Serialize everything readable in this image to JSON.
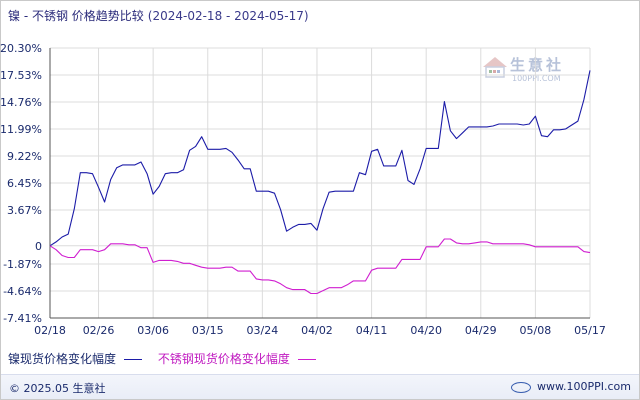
{
  "header": {
    "title": "镍 - 不锈钢 价格趋势比较",
    "date_range": "(2024-02-18 - 2024-05-17)"
  },
  "watermark": {
    "brand": "生意社",
    "site": "100PPI.COM"
  },
  "footer": {
    "copyright": "© 2025.05 生意社",
    "site": "www.100PPI.com"
  },
  "chart_data": {
    "type": "line",
    "title": "镍 - 不锈钢 价格趋势比较",
    "xlabel": "",
    "ylabel": "",
    "x_tick_labels": [
      "02/18",
      "02/26",
      "03/06",
      "03/15",
      "03/24",
      "04/02",
      "04/11",
      "04/20",
      "04/29",
      "05/08",
      "05/17"
    ],
    "y_tick_labels": [
      "20.30%",
      "17.53%",
      "14.76%",
      "11.99%",
      "9.22%",
      "6.45%",
      "3.67%",
      "0",
      "-1.87%",
      "-4.64%",
      "-7.41%"
    ],
    "ylim": [
      -7.41,
      20.3
    ],
    "grid": true,
    "legend_position": "bottom-left",
    "colors": {
      "nickel": "#1c1ca8",
      "stainless": "#d01fd0",
      "grid": "#dcdcdc",
      "axis": "#555555"
    },
    "series": [
      {
        "name": "镍现货价格变化幅度",
        "color": "#1c1ca8",
        "points": [
          [
            "02/18",
            0.0
          ],
          [
            "02/19",
            0.4
          ],
          [
            "02/20",
            0.9
          ],
          [
            "02/21",
            1.2
          ],
          [
            "02/22",
            3.8
          ],
          [
            "02/23",
            7.5
          ],
          [
            "02/24",
            7.5
          ],
          [
            "02/25",
            7.4
          ],
          [
            "02/26",
            6.0
          ],
          [
            "02/27",
            4.5
          ],
          [
            "02/28",
            6.8
          ],
          [
            "02/29",
            8.0
          ],
          [
            "03/01",
            8.3
          ],
          [
            "03/02",
            8.3
          ],
          [
            "03/03",
            8.3
          ],
          [
            "03/04",
            8.6
          ],
          [
            "03/05",
            7.4
          ],
          [
            "03/06",
            5.3
          ],
          [
            "03/07",
            6.1
          ],
          [
            "03/08",
            7.4
          ],
          [
            "03/09",
            7.5
          ],
          [
            "03/10",
            7.5
          ],
          [
            "03/11",
            7.8
          ],
          [
            "03/12",
            9.8
          ],
          [
            "03/13",
            10.2
          ],
          [
            "03/14",
            11.2
          ],
          [
            "03/15",
            9.9
          ],
          [
            "03/16",
            9.9
          ],
          [
            "03/17",
            9.9
          ],
          [
            "03/18",
            10.0
          ],
          [
            "03/19",
            9.6
          ],
          [
            "03/20",
            8.8
          ],
          [
            "03/21",
            7.9
          ],
          [
            "03/22",
            7.9
          ],
          [
            "03/23",
            5.6
          ],
          [
            "03/24",
            5.6
          ],
          [
            "03/25",
            5.6
          ],
          [
            "03/26",
            5.4
          ],
          [
            "03/27",
            3.7
          ],
          [
            "03/28",
            1.5
          ],
          [
            "03/29",
            1.9
          ],
          [
            "03/30",
            2.2
          ],
          [
            "03/31",
            2.2
          ],
          [
            "04/01",
            2.3
          ],
          [
            "04/02",
            1.6
          ],
          [
            "04/03",
            3.8
          ],
          [
            "04/04",
            5.5
          ],
          [
            "04/05",
            5.6
          ],
          [
            "04/06",
            5.6
          ],
          [
            "04/07",
            5.6
          ],
          [
            "04/08",
            5.6
          ],
          [
            "04/09",
            7.5
          ],
          [
            "04/10",
            7.3
          ],
          [
            "04/11",
            9.7
          ],
          [
            "04/12",
            9.9
          ],
          [
            "04/13",
            8.2
          ],
          [
            "04/14",
            8.2
          ],
          [
            "04/15",
            8.2
          ],
          [
            "04/16",
            9.8
          ],
          [
            "04/17",
            6.7
          ],
          [
            "04/18",
            6.3
          ],
          [
            "04/19",
            7.9
          ],
          [
            "04/20",
            10.0
          ],
          [
            "04/21",
            10.0
          ],
          [
            "04/22",
            10.0
          ],
          [
            "04/23",
            14.8
          ],
          [
            "04/24",
            11.8
          ],
          [
            "04/25",
            11.0
          ],
          [
            "04/26",
            11.6
          ],
          [
            "04/27",
            12.2
          ],
          [
            "04/28",
            12.2
          ],
          [
            "04/29",
            12.2
          ],
          [
            "04/30",
            12.2
          ],
          [
            "05/01",
            12.3
          ],
          [
            "05/02",
            12.5
          ],
          [
            "05/03",
            12.5
          ],
          [
            "05/04",
            12.5
          ],
          [
            "05/05",
            12.5
          ],
          [
            "05/06",
            12.4
          ],
          [
            "05/07",
            12.5
          ],
          [
            "05/08",
            13.3
          ],
          [
            "05/09",
            11.3
          ],
          [
            "05/10",
            11.2
          ],
          [
            "05/11",
            11.9
          ],
          [
            "05/12",
            11.9
          ],
          [
            "05/13",
            12.0
          ],
          [
            "05/14",
            12.4
          ],
          [
            "05/15",
            12.8
          ],
          [
            "05/16",
            15.0
          ],
          [
            "05/17",
            18.0
          ]
        ]
      },
      {
        "name": "不锈钢现货价格变化幅度",
        "color": "#d01fd0",
        "points": [
          [
            "02/18",
            0.0
          ],
          [
            "02/19",
            -0.4
          ],
          [
            "02/20",
            -1.0
          ],
          [
            "02/21",
            -1.2
          ],
          [
            "02/22",
            -1.2
          ],
          [
            "02/23",
            -0.4
          ],
          [
            "02/24",
            -0.4
          ],
          [
            "02/25",
            -0.4
          ],
          [
            "02/26",
            -0.6
          ],
          [
            "02/27",
            -0.4
          ],
          [
            "02/28",
            0.2
          ],
          [
            "02/29",
            0.2
          ],
          [
            "03/01",
            0.2
          ],
          [
            "03/02",
            0.1
          ],
          [
            "03/03",
            0.1
          ],
          [
            "03/04",
            -0.2
          ],
          [
            "03/05",
            -0.2
          ],
          [
            "03/06",
            -1.7
          ],
          [
            "03/07",
            -1.5
          ],
          [
            "03/08",
            -1.5
          ],
          [
            "03/09",
            -1.5
          ],
          [
            "03/10",
            -1.6
          ],
          [
            "03/11",
            -1.8
          ],
          [
            "03/12",
            -1.8
          ],
          [
            "03/13",
            -2.0
          ],
          [
            "03/14",
            -2.2
          ],
          [
            "03/15",
            -2.3
          ],
          [
            "03/16",
            -2.3
          ],
          [
            "03/17",
            -2.3
          ],
          [
            "03/18",
            -2.2
          ],
          [
            "03/19",
            -2.2
          ],
          [
            "03/20",
            -2.6
          ],
          [
            "03/21",
            -2.6
          ],
          [
            "03/22",
            -2.6
          ],
          [
            "03/23",
            -3.4
          ],
          [
            "03/24",
            -3.5
          ],
          [
            "03/25",
            -3.5
          ],
          [
            "03/26",
            -3.6
          ],
          [
            "03/27",
            -3.9
          ],
          [
            "03/28",
            -4.3
          ],
          [
            "03/29",
            -4.5
          ],
          [
            "03/30",
            -4.5
          ],
          [
            "03/31",
            -4.5
          ],
          [
            "04/01",
            -4.9
          ],
          [
            "04/02",
            -4.9
          ],
          [
            "04/03",
            -4.6
          ],
          [
            "04/04",
            -4.3
          ],
          [
            "04/05",
            -4.3
          ],
          [
            "04/06",
            -4.3
          ],
          [
            "04/07",
            -4.0
          ],
          [
            "04/08",
            -3.6
          ],
          [
            "04/09",
            -3.6
          ],
          [
            "04/10",
            -3.6
          ],
          [
            "04/11",
            -2.5
          ],
          [
            "04/12",
            -2.3
          ],
          [
            "04/13",
            -2.3
          ],
          [
            "04/14",
            -2.3
          ],
          [
            "04/15",
            -2.3
          ],
          [
            "04/16",
            -1.4
          ],
          [
            "04/17",
            -1.4
          ],
          [
            "04/18",
            -1.4
          ],
          [
            "04/19",
            -1.4
          ],
          [
            "04/20",
            -0.1
          ],
          [
            "04/21",
            -0.1
          ],
          [
            "04/22",
            -0.1
          ],
          [
            "04/23",
            0.7
          ],
          [
            "04/24",
            0.7
          ],
          [
            "04/25",
            0.3
          ],
          [
            "04/26",
            0.2
          ],
          [
            "04/27",
            0.2
          ],
          [
            "04/28",
            0.3
          ],
          [
            "04/29",
            0.4
          ],
          [
            "04/30",
            0.4
          ],
          [
            "05/01",
            0.2
          ],
          [
            "05/02",
            0.2
          ],
          [
            "05/03",
            0.2
          ],
          [
            "05/04",
            0.2
          ],
          [
            "05/05",
            0.2
          ],
          [
            "05/06",
            0.2
          ],
          [
            "05/07",
            0.1
          ],
          [
            "05/08",
            -0.1
          ],
          [
            "05/09",
            -0.1
          ],
          [
            "05/10",
            -0.1
          ],
          [
            "05/11",
            -0.1
          ],
          [
            "05/12",
            -0.1
          ],
          [
            "05/13",
            -0.1
          ],
          [
            "05/14",
            -0.1
          ],
          [
            "05/15",
            -0.1
          ],
          [
            "05/16",
            -0.6
          ],
          [
            "05/17",
            -0.7
          ]
        ]
      }
    ]
  }
}
